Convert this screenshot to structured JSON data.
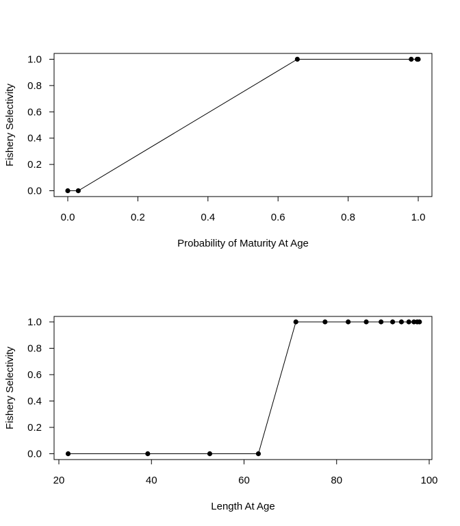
{
  "chart_data": [
    {
      "type": "line",
      "xlabel": "Probability of Maturity At Age",
      "ylabel": "Fishery Selectivity",
      "xlim": [
        0,
        1
      ],
      "ylim": [
        0,
        1
      ],
      "x_ticks": [
        "0.0",
        "0.2",
        "0.4",
        "0.6",
        "0.8",
        "1.0"
      ],
      "y_ticks": [
        "0.0",
        "0.2",
        "0.4",
        "0.6",
        "0.8",
        "1.0"
      ],
      "x": [
        0.0,
        0.03,
        0.655,
        0.98,
        0.997,
        1.0
      ],
      "y": [
        0.0,
        0.0,
        1.0,
        1.0,
        1.0,
        1.0
      ],
      "line_color": "#000000",
      "point_color": "#000000",
      "grid": false,
      "markers": "filled-circle"
    },
    {
      "type": "line",
      "xlabel": "Length At Age",
      "ylabel": "Fishery Selectivity",
      "xlim": [
        20,
        100
      ],
      "ylim": [
        0,
        1
      ],
      "x_ticks": [
        "20",
        "40",
        "60",
        "80",
        "100"
      ],
      "y_ticks": [
        "0.0",
        "0.2",
        "0.4",
        "0.6",
        "0.8",
        "1.0"
      ],
      "x": [
        22.0,
        39.2,
        52.6,
        63.1,
        71.2,
        77.5,
        82.5,
        86.4,
        89.6,
        92.1,
        94.0,
        95.6,
        96.7,
        97.4,
        97.9
      ],
      "y": [
        0,
        0,
        0,
        0,
        1,
        1,
        1,
        1,
        1,
        1,
        1,
        1,
        1,
        1,
        1
      ],
      "line_color": "#000000",
      "point_color": "#000000",
      "grid": false,
      "markers": "filled-circle"
    }
  ]
}
